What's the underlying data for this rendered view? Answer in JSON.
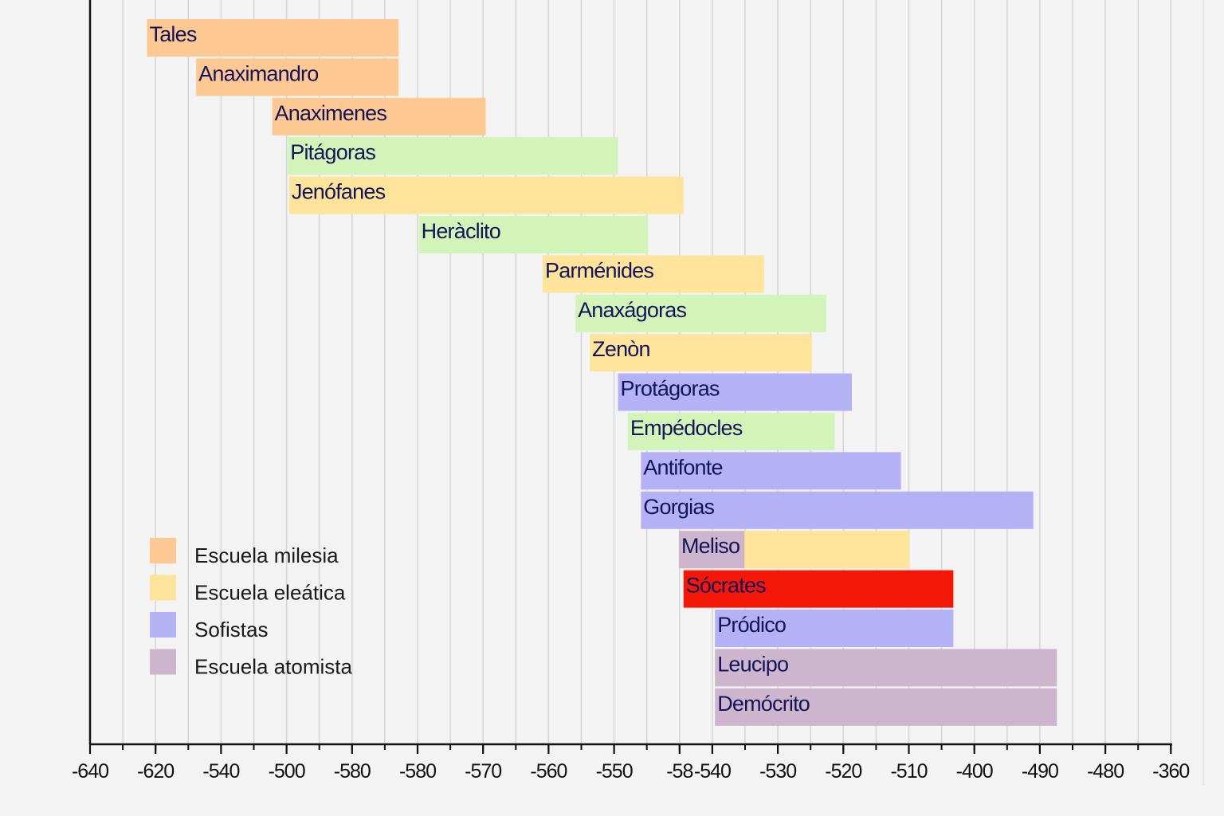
{
  "chart_data": {
    "type": "bar",
    "orientation": "horizontal-timeline",
    "title": "",
    "xlabel": "",
    "ylabel": "",
    "grid": true,
    "legend_position": "bottom-left",
    "x_axis": {
      "scale_note": "tick labels are printed as shown (non-monotonic); positions are in axis slots, 0 = first tick, 1 = one major tick step",
      "ticks": [
        {
          "label": "-640",
          "pos": 0
        },
        {
          "label": "-620",
          "pos": 1
        },
        {
          "label": "-540",
          "pos": 2
        },
        {
          "label": "-500",
          "pos": 3
        },
        {
          "label": "-580",
          "pos": 4
        },
        {
          "label": "-580",
          "pos": 5
        },
        {
          "label": "-570",
          "pos": 6
        },
        {
          "label": "-560",
          "pos": 7
        },
        {
          "label": "-550",
          "pos": 8
        },
        {
          "label": "-58",
          "pos": 9
        },
        {
          "label": "-540",
          "pos": 9.5
        },
        {
          "label": "-530",
          "pos": 10.5
        },
        {
          "label": "-520",
          "pos": 11.5
        },
        {
          "label": "-510",
          "pos": 12.5
        },
        {
          "label": "-400",
          "pos": 13.5
        },
        {
          "label": "-490",
          "pos": 14.5
        },
        {
          "label": "-480",
          "pos": 15.5
        },
        {
          "label": "-360",
          "pos": 16.5
        }
      ],
      "range": [
        0,
        16.5
      ]
    },
    "categories": {
      "milesia": {
        "label": "Escuela milesia",
        "color": "#fec893"
      },
      "eleatica": {
        "label": "Escuela eleática",
        "color": "#fde49a"
      },
      "sofistas": {
        "label": "Sofistas",
        "color": "#b4b2f4"
      },
      "atomista": {
        "label": "Escuela atomista",
        "color": "#cdb6cd"
      },
      "otros": {
        "label": "",
        "color": "#d3f4b8"
      },
      "socrates": {
        "label": "",
        "color": "#f21707"
      }
    },
    "legend": [
      {
        "label": "Escuela milesia",
        "color": "#fec893"
      },
      {
        "label": "Escuela eleática",
        "color": "#fde49a"
      },
      {
        "label": "Sofistas",
        "color": "#b4b2f4"
      },
      {
        "label": "Escuela atomista",
        "color": "#cdb6cd"
      }
    ],
    "bars": [
      {
        "name": "Tales",
        "start": 0.87,
        "end": 4.71,
        "category": "milesia",
        "row": 0
      },
      {
        "name": "Anaximandro",
        "start": 1.62,
        "end": 4.71,
        "category": "milesia",
        "row": 1
      },
      {
        "name": "Anaximenes",
        "start": 2.78,
        "end": 6.04,
        "category": "milesia",
        "row": 2
      },
      {
        "name": "Pitágoras",
        "start": 3.02,
        "end": 8.06,
        "category": "otros",
        "row": 3
      },
      {
        "name": "Jenófanes",
        "start": 3.04,
        "end": 9.06,
        "category": "eleatica",
        "row": 4
      },
      {
        "name": "Heràclito",
        "start": 5.02,
        "end": 8.52,
        "category": "otros",
        "row": 5
      },
      {
        "name": "Parménides",
        "start": 6.91,
        "end": 10.29,
        "category": "eleatica",
        "row": 6
      },
      {
        "name": "Anaxágoras",
        "start": 7.41,
        "end": 11.24,
        "category": "otros",
        "row": 7
      },
      {
        "name": "Zenòn",
        "start": 7.63,
        "end": 11.02,
        "category": "eleatica",
        "row": 8
      },
      {
        "name": "Protágoras",
        "start": 8.06,
        "end": 11.63,
        "category": "sofistas",
        "row": 9
      },
      {
        "name": "Empédocles",
        "start": 8.21,
        "end": 11.37,
        "category": "otros",
        "row": 10
      },
      {
        "name": "Antifonte",
        "start": 8.41,
        "end": 12.38,
        "category": "sofistas",
        "row": 11
      },
      {
        "name": "Gorgias",
        "start": 8.41,
        "end": 14.4,
        "category": "sofistas",
        "row": 12
      },
      {
        "name": "Meliso",
        "start": 8.99,
        "end": 12.51,
        "category": "eleatica",
        "split_at": 9.99,
        "split_category": "atomista",
        "row": 13
      },
      {
        "name": "Sócrates",
        "start": 9.06,
        "end": 13.18,
        "category": "socrates",
        "row": 14
      },
      {
        "name": "Pródico",
        "start": 9.54,
        "end": 13.18,
        "category": "sofistas",
        "row": 15
      },
      {
        "name": "Leucipo",
        "start": 9.54,
        "end": 14.76,
        "category": "atomista",
        "row": 16
      },
      {
        "name": "Demócrito",
        "start": 9.54,
        "end": 14.76,
        "category": "atomista",
        "row": 17
      }
    ]
  }
}
